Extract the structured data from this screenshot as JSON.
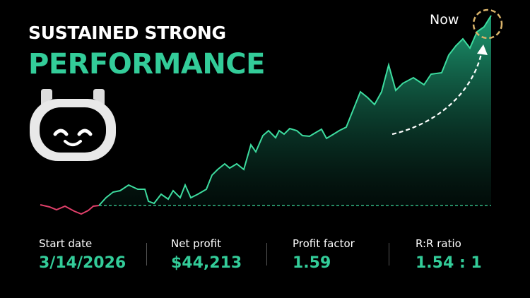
{
  "header": {
    "line1": "SUSTAINED STRONG",
    "line2": "PERFORMANCE"
  },
  "marker": {
    "label": "Now"
  },
  "stats": [
    {
      "label": "Start date",
      "value": "3/14/2026"
    },
    {
      "label": "Net profit",
      "value": "$44,213"
    },
    {
      "label": "Profit factor",
      "value": "1.59"
    },
    {
      "label": "R:R ratio",
      "value": "1.54 : 1"
    }
  ]
}
